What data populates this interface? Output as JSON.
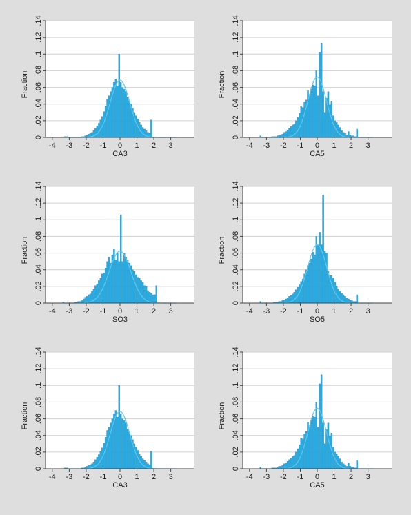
{
  "chart_data": [
    {
      "type": "bar",
      "subtype": "histogram-with-normal-density",
      "xlabel": "CA3",
      "ylabel": "Fraction",
      "xlim": [
        -4.4,
        4.4
      ],
      "ylim": [
        0,
        0.14
      ],
      "xticks": [
        "-4",
        "-3",
        "-2",
        "-1",
        "0",
        "1",
        "2",
        "3"
      ],
      "yticks": [
        "0",
        ".02",
        ".04",
        ".06",
        ".08",
        ".1",
        ".12",
        ".14"
      ],
      "grid": "horizontal",
      "bin_width": 0.1,
      "bin_starts": [
        -3.3,
        -3.2,
        -3.1,
        -3.0,
        -2.9,
        -2.8,
        -2.7,
        -2.6,
        -2.5,
        -2.4,
        -2.3,
        -2.2,
        -2.1,
        -2.0,
        -1.9,
        -1.8,
        -1.7,
        -1.6,
        -1.5,
        -1.4,
        -1.3,
        -1.2,
        -1.1,
        -1.0,
        -0.9,
        -0.8,
        -0.7,
        -0.6,
        -0.5,
        -0.4,
        -0.3,
        -0.2,
        -0.1,
        0.0,
        0.1,
        0.2,
        0.3,
        0.4,
        0.5,
        0.6,
        0.7,
        0.8,
        0.9,
        1.0,
        1.1,
        1.2,
        1.3,
        1.4,
        1.5,
        1.6,
        1.7,
        1.8
      ],
      "values": [
        0.001,
        0.001,
        0.0,
        0.0,
        0.0,
        0.0,
        0.0,
        0.0,
        0.0,
        0.0,
        0.001,
        0.001,
        0.002,
        0.003,
        0.004,
        0.005,
        0.006,
        0.008,
        0.011,
        0.014,
        0.017,
        0.021,
        0.025,
        0.031,
        0.038,
        0.046,
        0.05,
        0.055,
        0.06,
        0.066,
        0.07,
        0.062,
        0.1,
        0.066,
        0.06,
        0.058,
        0.055,
        0.048,
        0.044,
        0.04,
        0.035,
        0.03,
        0.026,
        0.022,
        0.018,
        0.015,
        0.012,
        0.01,
        0.008,
        0.006,
        0.005,
        0.021
      ],
      "density": {
        "mean": 0.0,
        "sd": 0.58
      },
      "colors": {
        "bar": "#29abe2",
        "curve": "#5bc8ee",
        "grid": "#d0d0d0",
        "background": "#ffffff"
      }
    },
    {
      "type": "bar",
      "subtype": "histogram-with-normal-density",
      "xlabel": "CA5",
      "ylabel": "Fraction",
      "xlim": [
        -4.4,
        4.4
      ],
      "ylim": [
        0,
        0.14
      ],
      "xticks": [
        "-4",
        "-3",
        "-2",
        "-1",
        "0",
        "1",
        "2",
        "3"
      ],
      "yticks": [
        "0",
        ".02",
        ".04",
        ".06",
        ".08",
        ".1",
        ".12",
        ".14"
      ],
      "grid": "horizontal",
      "bin_width": 0.1,
      "bin_starts": [
        -3.4,
        -3.3,
        -3.2,
        -3.1,
        -3.0,
        -2.9,
        -2.8,
        -2.7,
        -2.6,
        -2.5,
        -2.4,
        -2.3,
        -2.2,
        -2.1,
        -2.0,
        -1.9,
        -1.8,
        -1.7,
        -1.6,
        -1.5,
        -1.4,
        -1.3,
        -1.2,
        -1.1,
        -1.0,
        -0.9,
        -0.8,
        -0.7,
        -0.6,
        -0.5,
        -0.4,
        -0.3,
        -0.2,
        -0.1,
        0.0,
        0.1,
        0.2,
        0.3,
        0.4,
        0.5,
        0.6,
        0.7,
        0.8,
        0.9,
        1.0,
        1.1,
        1.2,
        1.3,
        1.4,
        1.5,
        1.6,
        1.7,
        1.8,
        1.9,
        2.0,
        2.1,
        2.2,
        2.3
      ],
      "values": [
        0.002,
        0.0,
        0.0,
        0.0,
        0.0,
        0.0,
        0.0,
        0.001,
        0.001,
        0.001,
        0.002,
        0.003,
        0.003,
        0.004,
        0.006,
        0.007,
        0.009,
        0.011,
        0.013,
        0.015,
        0.016,
        0.02,
        0.024,
        0.029,
        0.037,
        0.036,
        0.042,
        0.045,
        0.056,
        0.05,
        0.058,
        0.063,
        0.062,
        0.08,
        0.05,
        0.102,
        0.113,
        0.055,
        0.03,
        0.047,
        0.055,
        0.039,
        0.043,
        0.026,
        0.02,
        0.018,
        0.015,
        0.012,
        0.008,
        0.006,
        0.005,
        0.003,
        0.007,
        0.003,
        0.002,
        0.002,
        0.001,
        0.01
      ],
      "density": {
        "mean": 0.0,
        "sd": 0.55
      },
      "colors": {
        "bar": "#29abe2",
        "curve": "#5bc8ee",
        "grid": "#d0d0d0",
        "background": "#ffffff"
      }
    },
    {
      "type": "bar",
      "subtype": "histogram-with-normal-density",
      "xlabel": "SO3",
      "ylabel": "Fraction",
      "xlim": [
        -4.4,
        4.4
      ],
      "ylim": [
        0,
        0.14
      ],
      "xticks": [
        "-4",
        "-3",
        "-2",
        "-1",
        "0",
        "1",
        "2",
        "3"
      ],
      "yticks": [
        "0",
        ".02",
        ".04",
        ".06",
        ".08",
        ".1",
        ".12",
        ".14"
      ],
      "grid": "horizontal",
      "bin_width": 0.1,
      "bin_starts": [
        -3.4,
        -3.3,
        -3.2,
        -3.1,
        -3.0,
        -2.9,
        -2.8,
        -2.7,
        -2.6,
        -2.5,
        -2.4,
        -2.3,
        -2.2,
        -2.1,
        -2.0,
        -1.9,
        -1.8,
        -1.7,
        -1.6,
        -1.5,
        -1.4,
        -1.3,
        -1.2,
        -1.1,
        -1.0,
        -0.9,
        -0.8,
        -0.7,
        -0.6,
        -0.5,
        -0.4,
        -0.3,
        -0.2,
        -0.1,
        0.0,
        0.1,
        0.2,
        0.3,
        0.4,
        0.5,
        0.6,
        0.7,
        0.8,
        0.9,
        1.0,
        1.1,
        1.2,
        1.3,
        1.4,
        1.5,
        1.6,
        1.7,
        1.8,
        1.9,
        2.0,
        2.1
      ],
      "values": [
        0.001,
        0.0,
        0.0,
        0.0,
        0.0,
        0.0,
        0.0,
        0.001,
        0.001,
        0.002,
        0.002,
        0.003,
        0.005,
        0.007,
        0.008,
        0.01,
        0.011,
        0.014,
        0.017,
        0.021,
        0.023,
        0.027,
        0.03,
        0.035,
        0.036,
        0.042,
        0.05,
        0.055,
        0.048,
        0.058,
        0.065,
        0.052,
        0.06,
        0.05,
        0.106,
        0.05,
        0.06,
        0.055,
        0.052,
        0.048,
        0.045,
        0.04,
        0.038,
        0.034,
        0.031,
        0.03,
        0.027,
        0.025,
        0.021,
        0.02,
        0.015,
        0.013,
        0.012,
        0.01,
        0.01,
        0.021
      ],
      "density": {
        "mean": 0.0,
        "sd": 0.64
      },
      "colors": {
        "bar": "#29abe2",
        "curve": "#5bc8ee",
        "grid": "#d0d0d0",
        "background": "#ffffff"
      }
    },
    {
      "type": "bar",
      "subtype": "histogram-with-normal-density",
      "xlabel": "SO5",
      "ylabel": "Fraction",
      "xlim": [
        -4.4,
        4.4
      ],
      "ylim": [
        0,
        0.14
      ],
      "xticks": [
        "-4",
        "-3",
        "-2",
        "-1",
        "0",
        "1",
        "2",
        "3"
      ],
      "yticks": [
        "0",
        ".02",
        ".04",
        ".06",
        ".08",
        ".1",
        ".12",
        ".14"
      ],
      "grid": "horizontal",
      "bin_width": 0.1,
      "bin_starts": [
        -3.4,
        -3.3,
        -3.2,
        -3.1,
        -3.0,
        -2.9,
        -2.8,
        -2.7,
        -2.6,
        -2.5,
        -2.4,
        -2.3,
        -2.2,
        -2.1,
        -2.0,
        -1.9,
        -1.8,
        -1.7,
        -1.6,
        -1.5,
        -1.4,
        -1.3,
        -1.2,
        -1.1,
        -1.0,
        -0.9,
        -0.8,
        -0.7,
        -0.6,
        -0.5,
        -0.4,
        -0.3,
        -0.2,
        -0.1,
        0.0,
        0.1,
        0.2,
        0.3,
        0.4,
        0.5,
        0.6,
        0.7,
        0.8,
        0.9,
        1.0,
        1.1,
        1.2,
        1.3,
        1.4,
        1.5,
        1.6,
        1.7,
        1.8,
        1.9,
        2.0,
        2.1,
        2.2,
        2.3
      ],
      "values": [
        0.002,
        0.0,
        0.0,
        0.0,
        0.0,
        0.0,
        0.0,
        0.0,
        0.001,
        0.001,
        0.001,
        0.002,
        0.002,
        0.003,
        0.004,
        0.005,
        0.006,
        0.008,
        0.009,
        0.011,
        0.013,
        0.016,
        0.019,
        0.022,
        0.026,
        0.029,
        0.035,
        0.04,
        0.045,
        0.048,
        0.053,
        0.061,
        0.058,
        0.08,
        0.07,
        0.085,
        0.07,
        0.13,
        0.062,
        0.06,
        0.038,
        0.033,
        0.033,
        0.03,
        0.025,
        0.02,
        0.017,
        0.014,
        0.012,
        0.01,
        0.008,
        0.006,
        0.005,
        0.004,
        0.003,
        0.002,
        0.002,
        0.01
      ],
      "density": {
        "mean": 0.0,
        "sd": 0.57
      },
      "colors": {
        "bar": "#29abe2",
        "curve": "#5bc8ee",
        "grid": "#d0d0d0",
        "background": "#ffffff"
      }
    },
    {
      "type": "bar",
      "subtype": "histogram-with-normal-density",
      "xlabel": "CA3",
      "ylabel": "Fraction",
      "xlim": [
        -4.4,
        4.4
      ],
      "ylim": [
        0,
        0.14
      ],
      "xticks": [
        "-4",
        "-3",
        "-2",
        "-1",
        "0",
        "1",
        "2",
        "3"
      ],
      "yticks": [
        "0",
        ".02",
        ".04",
        ".06",
        ".08",
        ".1",
        ".12",
        ".14"
      ],
      "grid": "horizontal",
      "bin_width": 0.1,
      "bin_starts": [
        -3.3,
        -3.2,
        -3.1,
        -3.0,
        -2.9,
        -2.8,
        -2.7,
        -2.6,
        -2.5,
        -2.4,
        -2.3,
        -2.2,
        -2.1,
        -2.0,
        -1.9,
        -1.8,
        -1.7,
        -1.6,
        -1.5,
        -1.4,
        -1.3,
        -1.2,
        -1.1,
        -1.0,
        -0.9,
        -0.8,
        -0.7,
        -0.6,
        -0.5,
        -0.4,
        -0.3,
        -0.2,
        -0.1,
        0.0,
        0.1,
        0.2,
        0.3,
        0.4,
        0.5,
        0.6,
        0.7,
        0.8,
        0.9,
        1.0,
        1.1,
        1.2,
        1.3,
        1.4,
        1.5,
        1.6,
        1.7,
        1.8
      ],
      "values": [
        0.001,
        0.001,
        0.0,
        0.0,
        0.0,
        0.0,
        0.0,
        0.0,
        0.0,
        0.0,
        0.001,
        0.001,
        0.002,
        0.003,
        0.004,
        0.005,
        0.006,
        0.008,
        0.011,
        0.014,
        0.017,
        0.021,
        0.025,
        0.031,
        0.038,
        0.046,
        0.05,
        0.055,
        0.06,
        0.066,
        0.07,
        0.062,
        0.1,
        0.066,
        0.06,
        0.058,
        0.055,
        0.048,
        0.044,
        0.04,
        0.035,
        0.03,
        0.026,
        0.022,
        0.018,
        0.015,
        0.012,
        0.01,
        0.008,
        0.006,
        0.005,
        0.021
      ],
      "density": {
        "mean": 0.0,
        "sd": 0.58
      },
      "colors": {
        "bar": "#29abe2",
        "curve": "#5bc8ee",
        "grid": "#d0d0d0",
        "background": "#ffffff"
      }
    },
    {
      "type": "bar",
      "subtype": "histogram-with-normal-density",
      "xlabel": "CA5",
      "ylabel": "Fraction",
      "xlim": [
        -4.4,
        4.4
      ],
      "ylim": [
        0,
        0.14
      ],
      "xticks": [
        "-4",
        "-3",
        "-2",
        "-1",
        "0",
        "1",
        "2",
        "3"
      ],
      "yticks": [
        "0",
        ".02",
        ".04",
        ".06",
        ".08",
        ".1",
        ".12",
        ".14"
      ],
      "grid": "horizontal",
      "bin_width": 0.1,
      "bin_starts": [
        -3.4,
        -3.3,
        -3.2,
        -3.1,
        -3.0,
        -2.9,
        -2.8,
        -2.7,
        -2.6,
        -2.5,
        -2.4,
        -2.3,
        -2.2,
        -2.1,
        -2.0,
        -1.9,
        -1.8,
        -1.7,
        -1.6,
        -1.5,
        -1.4,
        -1.3,
        -1.2,
        -1.1,
        -1.0,
        -0.9,
        -0.8,
        -0.7,
        -0.6,
        -0.5,
        -0.4,
        -0.3,
        -0.2,
        -0.1,
        0.0,
        0.1,
        0.2,
        0.3,
        0.4,
        0.5,
        0.6,
        0.7,
        0.8,
        0.9,
        1.0,
        1.1,
        1.2,
        1.3,
        1.4,
        1.5,
        1.6,
        1.7,
        1.8,
        1.9,
        2.0,
        2.1,
        2.2,
        2.3
      ],
      "values": [
        0.002,
        0.0,
        0.0,
        0.0,
        0.0,
        0.0,
        0.0,
        0.001,
        0.001,
        0.001,
        0.002,
        0.003,
        0.003,
        0.004,
        0.006,
        0.007,
        0.009,
        0.011,
        0.013,
        0.015,
        0.016,
        0.02,
        0.024,
        0.029,
        0.037,
        0.036,
        0.042,
        0.045,
        0.056,
        0.05,
        0.058,
        0.063,
        0.062,
        0.08,
        0.05,
        0.102,
        0.113,
        0.055,
        0.03,
        0.047,
        0.055,
        0.039,
        0.043,
        0.026,
        0.02,
        0.018,
        0.015,
        0.012,
        0.008,
        0.006,
        0.005,
        0.003,
        0.007,
        0.003,
        0.002,
        0.002,
        0.001,
        0.01
      ],
      "density": {
        "mean": 0.0,
        "sd": 0.55
      },
      "colors": {
        "bar": "#29abe2",
        "curve": "#5bc8ee",
        "grid": "#d0d0d0",
        "background": "#ffffff"
      }
    }
  ]
}
